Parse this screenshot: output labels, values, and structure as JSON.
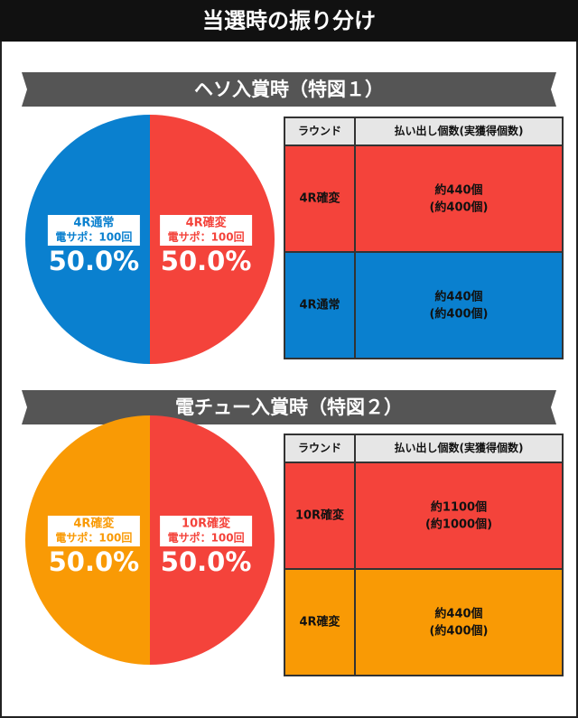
{
  "title": "当選時の振り分け",
  "chart_data": [
    {
      "type": "pie",
      "title": "ヘソ入賞時（特図１）",
      "categories": [
        "4R確変",
        "4R通常"
      ],
      "category_notes": [
        "電サポ：100回",
        "電サポ：100回"
      ],
      "values": [
        50,
        50
      ],
      "value_labels": [
        "50.0%",
        "50.0%"
      ],
      "colors": [
        "#f4433b",
        "#0a80cf"
      ]
    },
    {
      "type": "pie",
      "title": "電チュー入賞時（特図２）",
      "categories": [
        "10R確変",
        "4R確変"
      ],
      "category_notes": [
        "電サポ：100回",
        "電サポ：100回"
      ],
      "values": [
        50,
        50
      ],
      "value_labels": [
        "50.0%",
        "50.0%"
      ],
      "colors": [
        "#f4433b",
        "#f99a05"
      ]
    }
  ],
  "tables": [
    {
      "columns": [
        "ラウンド",
        "払い出し個数(実獲得個数)"
      ],
      "rows": [
        {
          "round": "4R確変",
          "payout": "約440個",
          "actual": "(約400個)",
          "color": "#f4433b"
        },
        {
          "round": "4R通常",
          "payout": "約440個",
          "actual": "(約400個)",
          "color": "#0a80cf"
        }
      ]
    },
    {
      "columns": [
        "ラウンド",
        "払い出し個数(実獲得個数)"
      ],
      "rows": [
        {
          "round": "10R確変",
          "payout": "約1100個",
          "actual": "(約1000個)",
          "color": "#f4433b"
        },
        {
          "round": "4R確変",
          "payout": "約440個",
          "actual": "(約400個)",
          "color": "#f99a05"
        }
      ]
    }
  ]
}
